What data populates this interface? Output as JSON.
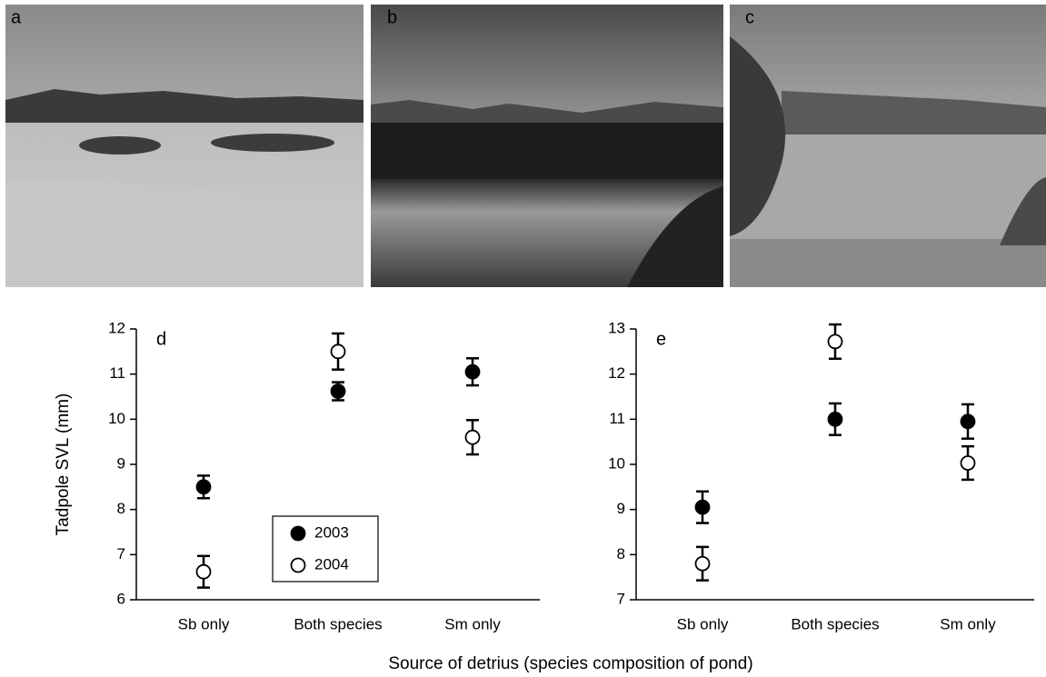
{
  "photos": [
    {
      "label": "a"
    },
    {
      "label": "b"
    },
    {
      "label": "c"
    }
  ],
  "xlabel": "Source of detrius (species composition of pond)",
  "chart_data": [
    {
      "type": "scatter",
      "label": "d",
      "ylabel": "Tadpole SVL (mm)",
      "categories": [
        "Sb only",
        "Both species",
        "Sm only"
      ],
      "ylim": [
        6,
        12
      ],
      "yticks": [
        6,
        7,
        8,
        9,
        10,
        11,
        12
      ],
      "legend": "lower center",
      "series": [
        {
          "name": "2003",
          "color": "#000000",
          "filled": true,
          "values": [
            8.5,
            10.62,
            11.05
          ],
          "errors": [
            0.25,
            0.2,
            0.3
          ]
        },
        {
          "name": "2004",
          "color": "#000000",
          "filled": false,
          "values": [
            6.62,
            11.5,
            9.6
          ],
          "errors": [
            0.35,
            0.4,
            0.38
          ]
        }
      ]
    },
    {
      "type": "scatter",
      "label": "e",
      "categories": [
        "Sb only",
        "Both species",
        "Sm only"
      ],
      "ylim": [
        7,
        13
      ],
      "yticks": [
        7,
        8,
        9,
        10,
        11,
        12,
        13
      ],
      "series": [
        {
          "name": "2003",
          "color": "#000000",
          "filled": true,
          "values": [
            9.05,
            11.0,
            10.95
          ],
          "errors": [
            0.35,
            0.35,
            0.38
          ]
        },
        {
          "name": "2004",
          "color": "#000000",
          "filled": false,
          "values": [
            7.8,
            12.72,
            10.03
          ],
          "errors": [
            0.37,
            0.38,
            0.37
          ]
        }
      ]
    }
  ]
}
